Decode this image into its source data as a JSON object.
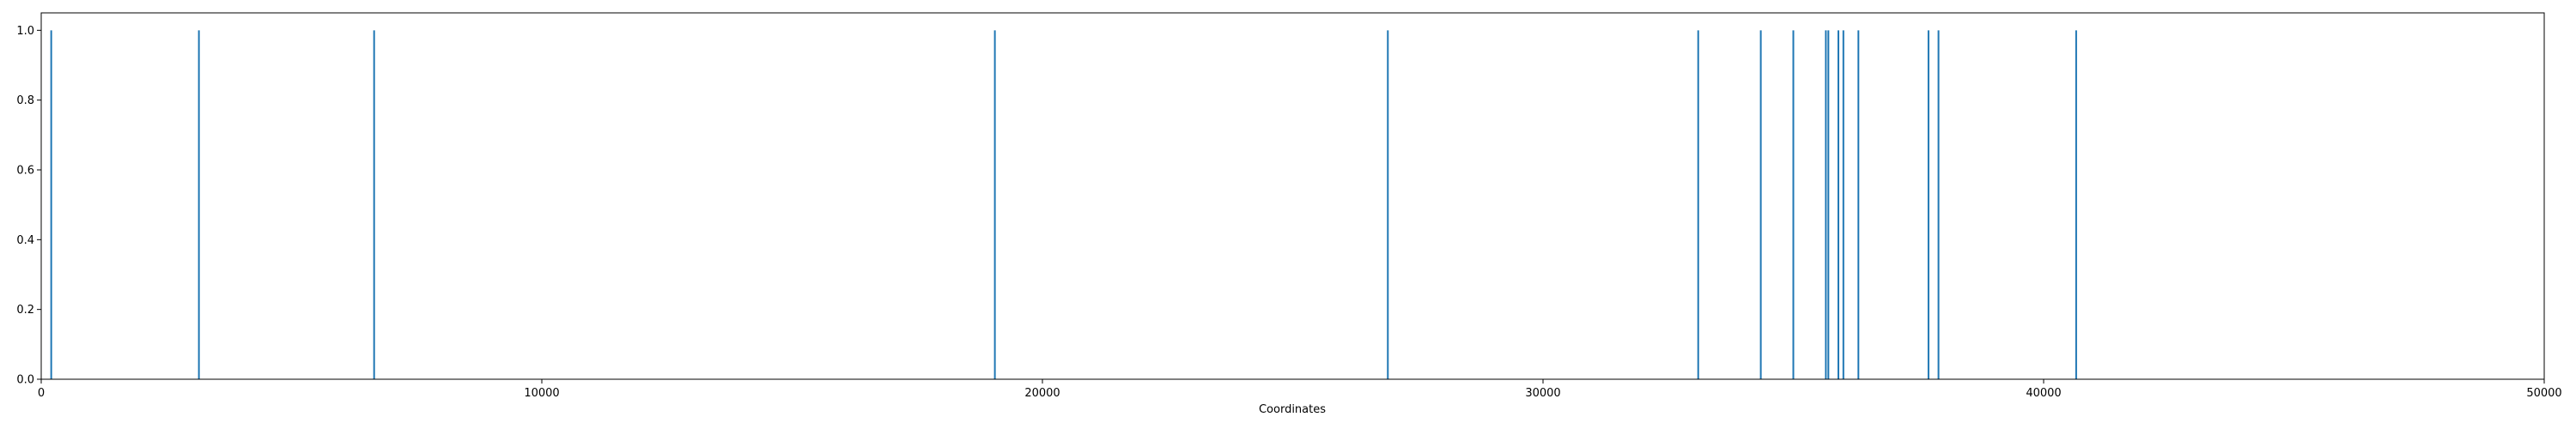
{
  "chart_data": {
    "type": "bar",
    "xlabel": "Coordinates",
    "ylabel": "",
    "title": "",
    "xlim": [
      0,
      50000
    ],
    "ylim": [
      0,
      1.05
    ],
    "grid": false,
    "bar_color": "#1f77b4",
    "x_ticks": [
      0,
      10000,
      20000,
      30000,
      40000,
      50000
    ],
    "x_tick_labels": [
      "0",
      "10000",
      "20000",
      "30000",
      "40000",
      "50000"
    ],
    "y_ticks": [
      0.0,
      0.2,
      0.4,
      0.6,
      0.8,
      1.0
    ],
    "y_tick_labels": [
      "0.0",
      "0.2",
      "0.4",
      "0.6",
      "0.8",
      "1.0"
    ],
    "x": [
      200,
      3150,
      6650,
      19050,
      26900,
      33100,
      34350,
      35000,
      35650,
      35700,
      35900,
      36000,
      36300,
      37700,
      37900,
      40650
    ],
    "values": [
      1,
      1,
      1,
      1,
      1,
      1,
      1,
      1,
      1,
      1,
      1,
      1,
      1,
      1,
      1,
      1
    ]
  }
}
